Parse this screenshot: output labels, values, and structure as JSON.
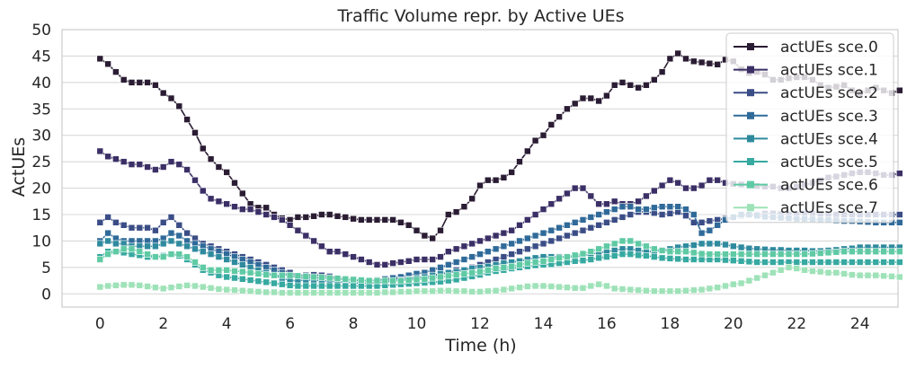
{
  "chart_data": {
    "type": "line",
    "title": "Traffic Volume repr. by Active UEs",
    "xlabel": "Time (h)",
    "ylabel": "ActUEs",
    "xlim": [
      -1.2,
      25.2
    ],
    "ylim": [
      -2.5,
      50
    ],
    "xticks": [
      0,
      2,
      4,
      6,
      8,
      10,
      12,
      14,
      16,
      18,
      20,
      22,
      24
    ],
    "yticks": [
      0,
      5,
      10,
      15,
      20,
      25,
      30,
      35,
      40,
      45,
      50
    ],
    "grid": true,
    "legend_position": "top-right",
    "marker": "square",
    "x_step": 0.25,
    "series": [
      {
        "name": "actUEs sce.0",
        "color": "#2a1c33",
        "values": [
          44.5,
          43.5,
          42,
          40.5,
          40,
          40,
          40,
          39.5,
          38,
          37,
          35.5,
          33,
          30.5,
          27.5,
          25.5,
          24,
          23,
          21,
          19,
          17,
          16.3,
          16.3,
          15,
          14.3,
          14,
          14.5,
          14.5,
          14.7,
          15,
          15,
          14.7,
          14.5,
          14.2,
          14,
          14,
          14,
          14,
          14,
          13.5,
          13,
          12,
          11,
          10.5,
          12,
          15,
          15.5,
          16.5,
          18,
          20.5,
          21.5,
          21.5,
          22,
          23,
          25,
          27,
          29,
          30,
          32,
          33.5,
          35,
          36,
          37,
          37,
          36.5,
          37.5,
          39.5,
          40,
          39.5,
          39,
          39.5,
          40.5,
          42,
          44.5,
          45.5,
          44.5,
          44,
          43.8,
          43.6,
          43.4,
          44.3,
          44,
          42.5,
          41.8,
          42,
          41.5,
          40.5,
          40.5,
          40.8,
          41,
          41,
          40.5,
          39.5,
          39,
          39.2,
          39.5,
          38.5,
          38,
          38.5,
          39,
          38.5,
          38,
          38.5
        ]
      },
      {
        "name": "actUEs sce.1",
        "color": "#3b2f66",
        "values": [
          27,
          26,
          25.5,
          25,
          24.5,
          24.5,
          24,
          23.5,
          24,
          25,
          24.5,
          23.5,
          21.5,
          19.5,
          18,
          17.5,
          17,
          16.5,
          16,
          16,
          15.5,
          15,
          14.5,
          14,
          13,
          12,
          11,
          10,
          9,
          8,
          8,
          7.5,
          7,
          6.5,
          6,
          5.5,
          5.5,
          5.8,
          6,
          6.2,
          6.5,
          6.5,
          6.5,
          7,
          8,
          8.5,
          9,
          9.5,
          10,
          10.5,
          11,
          11.5,
          12,
          13,
          14,
          15,
          16,
          17,
          18,
          19,
          20,
          20,
          18.5,
          17,
          17,
          17.5,
          17,
          17,
          17.5,
          18.5,
          19.5,
          20.5,
          21.5,
          21,
          20,
          20,
          20.5,
          21.5,
          21.5,
          21,
          20.8,
          20.7,
          20.5,
          20.4,
          20.3,
          20.3,
          20,
          20,
          20.3,
          20.6,
          21,
          21.5,
          22,
          22.2,
          22.5,
          22.8,
          23,
          23,
          22.8,
          22.5,
          22.5,
          22.8
        ]
      },
      {
        "name": "actUEs sce.2",
        "color": "#3b4d86",
        "values": [
          13.5,
          14.5,
          13.5,
          13,
          12.5,
          12.5,
          12.5,
          12,
          13.5,
          14.5,
          13,
          11.5,
          10.5,
          9.5,
          9,
          8.5,
          8,
          7.5,
          7,
          6.5,
          6,
          5.5,
          5,
          4.5,
          4,
          3.5,
          3.5,
          3.6,
          3.5,
          3.3,
          3,
          2.8,
          2.6,
          2.5,
          2.5,
          2.6,
          2.7,
          2.8,
          2.9,
          3,
          3.1,
          3.2,
          3.4,
          3.7,
          4,
          4.5,
          4.5,
          5,
          5.5,
          6,
          6.5,
          7,
          7.5,
          8,
          8.5,
          9,
          9.5,
          10,
          10.5,
          11,
          11.5,
          12,
          12.5,
          13,
          13.5,
          14,
          14.5,
          15,
          15.5,
          15.5,
          15.3,
          15,
          15.2,
          15.5,
          14.8,
          13.5,
          13.5,
          13.8,
          14,
          14.2,
          14.5,
          14.8,
          15,
          15,
          15.2,
          15.2,
          15.1,
          15,
          15,
          15.2,
          15.2,
          15.1,
          15,
          15,
          15,
          15,
          15,
          15,
          15,
          15,
          15,
          15
        ]
      },
      {
        "name": "actUEs sce.3",
        "color": "#2f6a99",
        "values": [
          10,
          11.5,
          10.5,
          10,
          10,
          10,
          10,
          10,
          10.5,
          11.5,
          11,
          10,
          9.5,
          9,
          8.5,
          8,
          7.5,
          7,
          6.5,
          6,
          5.5,
          5,
          4.5,
          4,
          3.5,
          3,
          3,
          3,
          3,
          2.9,
          2.8,
          2.7,
          2.6,
          2.5,
          2.5,
          2.6,
          2.8,
          3,
          3.2,
          3.5,
          3.8,
          4,
          4.5,
          5,
          5.5,
          6,
          6.5,
          7,
          7.5,
          8,
          8.5,
          9,
          9.5,
          10,
          10.5,
          11,
          11.5,
          12,
          12.5,
          13,
          13.5,
          14,
          14.5,
          15,
          15.5,
          16,
          16.5,
          16.5,
          16,
          16,
          16.3,
          16.5,
          16.5,
          16.5,
          16,
          15,
          11.5,
          12,
          13,
          14,
          14.5,
          15,
          15,
          14.8,
          14.6,
          14.5,
          14.4,
          14.3,
          14.2,
          14.2,
          14.1,
          14,
          14,
          13.9,
          13.8,
          13.8,
          13.7,
          13.6,
          13.5,
          13.5,
          13.5,
          13.5
        ]
      },
      {
        "name": "actUEs sce.4",
        "color": "#2f8a9e",
        "values": [
          9.5,
          10,
          9.5,
          9.5,
          9,
          9,
          9,
          9,
          9.5,
          10,
          9.5,
          9,
          8.5,
          8,
          7.5,
          7,
          6.5,
          6,
          5.5,
          5,
          4.5,
          4,
          3.5,
          3,
          2.5,
          2.5,
          2.6,
          2.6,
          2.5,
          2.4,
          2.3,
          2.2,
          2.1,
          2,
          2,
          2.1,
          2.2,
          2.4,
          2.6,
          2.8,
          3,
          3.2,
          3.5,
          3.8,
          4,
          4.2,
          4.5,
          4.8,
          5,
          5.2,
          5.5,
          5.8,
          6,
          6.2,
          6.5,
          6.8,
          7,
          7,
          7,
          7,
          7,
          7.2,
          7.5,
          7.8,
          8,
          8.2,
          8.5,
          8.5,
          8.2,
          8,
          8,
          8.2,
          8.5,
          8.8,
          9,
          9.2,
          9.5,
          9.5,
          9.5,
          9.3,
          9,
          8.8,
          8.6,
          8.5,
          8.4,
          8.3,
          8.3,
          8.2,
          8.2,
          8.2,
          8.1,
          8.1,
          8.2,
          8.3,
          8.5,
          8.6,
          8.8,
          8.8,
          8.8,
          8.8,
          8.8,
          8.8
        ]
      },
      {
        "name": "actUEs sce.5",
        "color": "#36a9a0",
        "values": [
          7,
          8,
          8,
          7.8,
          7.5,
          7.3,
          7,
          7,
          7.2,
          7.5,
          7.2,
          6.5,
          5.5,
          4.5,
          4,
          3.5,
          3.2,
          3,
          2.8,
          2.6,
          2.4,
          2.2,
          2,
          1.8,
          1.6,
          1.5,
          1.5,
          1.5,
          1.5,
          1.5,
          1.5,
          1.5,
          1.5,
          1.5,
          1.5,
          1.5,
          1.6,
          1.7,
          1.8,
          1.9,
          2,
          2.1,
          2.2,
          2.3,
          2.5,
          2.7,
          3,
          3.3,
          3.6,
          4,
          4.3,
          4.5,
          4.8,
          5,
          5.2,
          5.4,
          5.5,
          5.6,
          5.8,
          6,
          6.2,
          6.3,
          6.5,
          6.8,
          7,
          7.2,
          7.5,
          7.5,
          7.3,
          7.2,
          7,
          6.8,
          6.7,
          6.6,
          6.5,
          6.5,
          6.5,
          6.5,
          6.5,
          6.4,
          6.3,
          6.2,
          6.1,
          6,
          6,
          6,
          6,
          6,
          6,
          6,
          6,
          6,
          6,
          6,
          6,
          6,
          6,
          6,
          6,
          6,
          6,
          6
        ]
      },
      {
        "name": "actUEs sce.6",
        "color": "#5fcaa4",
        "values": [
          6.5,
          7.5,
          8,
          8.5,
          8.5,
          8,
          7.5,
          7,
          7,
          7.5,
          7.5,
          7,
          6,
          5,
          4.5,
          4.5,
          4.5,
          4.3,
          4.2,
          4,
          3.8,
          3.6,
          3.5,
          3.5,
          3.5,
          3.4,
          3.3,
          3.2,
          3.1,
          3,
          2.9,
          2.8,
          2.7,
          2.6,
          2.5,
          2.5,
          2.5,
          2.5,
          2.5,
          2.6,
          2.7,
          2.8,
          3,
          3.2,
          3.4,
          3.6,
          3.8,
          4,
          4.2,
          4.5,
          4.8,
          5,
          5.2,
          5.5,
          5.8,
          6,
          6.2,
          6.5,
          6.8,
          7,
          7.3,
          7.6,
          8,
          8.5,
          9,
          9.5,
          10,
          10,
          9.5,
          9,
          8.5,
          8.2,
          8,
          8,
          8,
          7.8,
          7.6,
          7.5,
          7.5,
          7.5,
          7.5,
          7.5,
          7.5,
          7.5,
          7.5,
          7.5,
          7.5,
          7.5,
          7.5,
          7.5,
          7.6,
          7.7,
          7.8,
          7.9,
          8,
          8,
          8,
          8,
          8,
          8,
          8,
          8
        ]
      },
      {
        "name": "actUEs sce.7",
        "color": "#9ee2b8",
        "values": [
          1.3,
          1.5,
          1.6,
          1.7,
          1.7,
          1.6,
          1.4,
          1.2,
          1,
          1.2,
          1.4,
          1.6,
          1.5,
          1.3,
          1.1,
          0.9,
          0.8,
          0.7,
          0.6,
          0.5,
          0.4,
          0.3,
          0.3,
          0.2,
          0.2,
          0.2,
          0.2,
          0.2,
          0.2,
          0.2,
          0.2,
          0.2,
          0.2,
          0.2,
          0.2,
          0.2,
          0.3,
          0.3,
          0.4,
          0.4,
          0.5,
          0.5,
          0.5,
          0.6,
          0.6,
          0.5,
          0.5,
          0.4,
          0.4,
          0.5,
          0.6,
          0.8,
          1,
          1.2,
          1.4,
          1.5,
          1.5,
          1.4,
          1.3,
          1.2,
          1.1,
          1.1,
          1.5,
          1.8,
          1.5,
          1,
          0.9,
          0.8,
          0.7,
          0.6,
          0.5,
          0.5,
          0.5,
          0.5,
          0.6,
          0.7,
          0.8,
          1,
          1.2,
          1.5,
          1.8,
          2,
          2.5,
          3,
          3.5,
          4,
          4.5,
          5,
          4.8,
          4.5,
          4.3,
          4.2,
          4,
          4,
          3.8,
          3.6,
          3.5,
          3.5,
          3.5,
          3.4,
          3.3,
          3.2
        ]
      }
    ]
  }
}
